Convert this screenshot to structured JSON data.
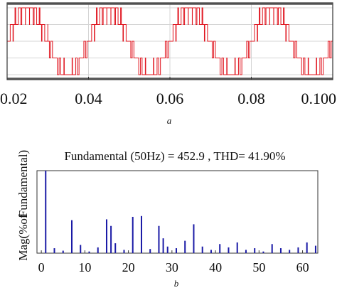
{
  "chart_data": [
    {
      "type": "line",
      "panel_label": "a",
      "title": "",
      "xlabel": "",
      "ylabel": "",
      "xlim": [
        0.02,
        0.1
      ],
      "ylim": [
        -1.15,
        1.15
      ],
      "x_ticks": [
        0.02,
        0.04,
        0.06,
        0.08,
        0.1
      ],
      "x_tick_labels": [
        "0.02",
        "0.04",
        "0.06",
        "0.08",
        "0.100"
      ],
      "grid": true,
      "series": [
        {
          "color": "#e0141e",
          "levels": [
            -1,
            -0.5,
            0,
            0.5,
            1
          ],
          "fundamental_hz": 50,
          "phase_deg": 0,
          "step_amplitude": 1.0
        }
      ]
    },
    {
      "type": "bar",
      "panel_label": "b",
      "title": "Fundamental (50Hz) = 452.9 , THD= 41.90%",
      "xlabel": "",
      "ylabel": "Mag (% of Fundamental)",
      "ylabel_visible": [
        "Mag(%of",
        "Fundamental)"
      ],
      "xlim": [
        -1,
        63.5
      ],
      "ylim": [
        0,
        100
      ],
      "x_ticks": [
        0,
        10,
        20,
        30,
        40,
        50,
        60
      ],
      "x_tick_labels": [
        "0",
        "10",
        "20",
        "30",
        "40",
        "50",
        "60"
      ],
      "grid": false,
      "bar_color": "#1a1aa6",
      "x": [
        1,
        3,
        5,
        7,
        9,
        11,
        13,
        15,
        16,
        17,
        19,
        21,
        23,
        25,
        27,
        28,
        29,
        31,
        33,
        35,
        37,
        39,
        41,
        43,
        45,
        47,
        49,
        51,
        53,
        55,
        57,
        59,
        61,
        63
      ],
      "values": [
        100,
        6,
        3,
        40,
        10,
        2,
        7,
        41,
        33,
        12,
        4,
        44,
        45,
        5,
        33,
        18,
        8,
        6,
        15,
        35,
        8,
        4,
        11,
        7,
        13,
        4,
        6,
        2,
        11,
        6,
        4,
        7,
        13,
        9
      ]
    }
  ]
}
